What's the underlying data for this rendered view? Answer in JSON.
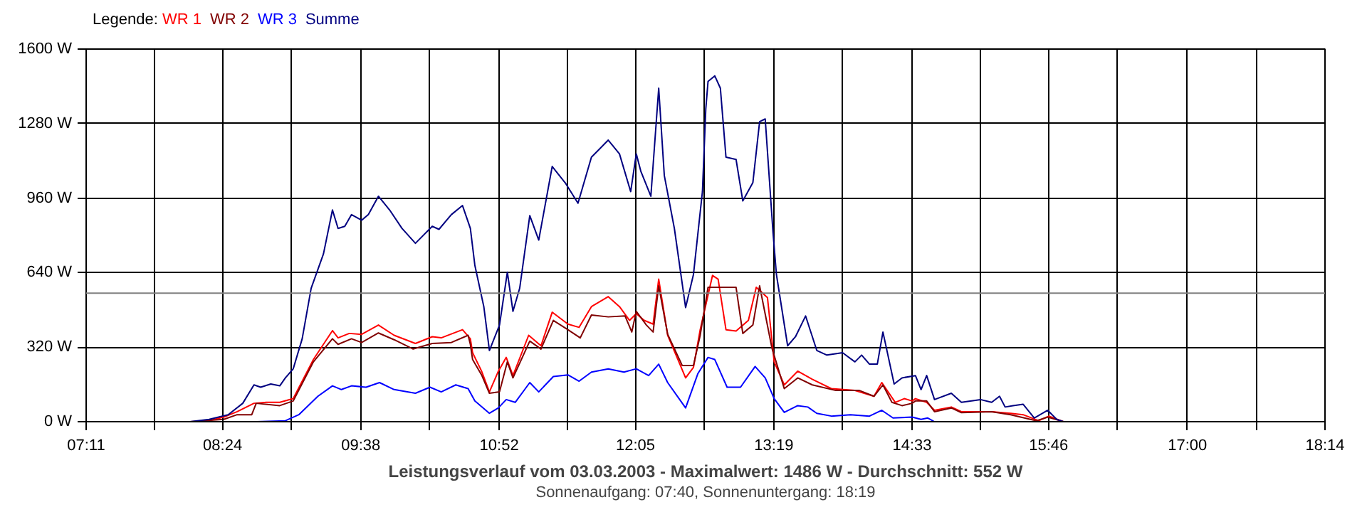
{
  "chart_data": {
    "type": "line",
    "title": "Leistungsverlauf vom 03.03.2003 - Maximalwert: 1486 W - Durchschnitt: 552 W",
    "subtitle": "Sonnenaufgang: 07:40, Sonnenuntergang: 18:19",
    "legend_title": "Legende:",
    "legend": "top left",
    "grid": true,
    "marker": "none",
    "line_style": "solid",
    "xlim": [
      7.183,
      18.233
    ],
    "ylim": [
      0,
      1600
    ],
    "xticks": [
      {
        "value": 7.183,
        "label": "07:11"
      },
      {
        "value": 7.797,
        "label": null
      },
      {
        "value": 8.4,
        "label": "08:24"
      },
      {
        "value": 9.017,
        "label": null
      },
      {
        "value": 9.633,
        "label": "09:38"
      },
      {
        "value": 10.25,
        "label": null
      },
      {
        "value": 10.867,
        "label": "10:52"
      },
      {
        "value": 11.475,
        "label": null
      },
      {
        "value": 12.083,
        "label": "12:05"
      },
      {
        "value": 12.7,
        "label": null
      },
      {
        "value": 13.317,
        "label": "13:19"
      },
      {
        "value": 13.933,
        "label": null
      },
      {
        "value": 14.55,
        "label": "14:33"
      },
      {
        "value": 15.158,
        "label": null
      },
      {
        "value": 15.767,
        "label": "15:46"
      },
      {
        "value": 16.383,
        "label": null
      },
      {
        "value": 17.006,
        "label": "17:00"
      },
      {
        "value": 17.619,
        "label": null
      },
      {
        "value": 18.233,
        "label": "18:14"
      }
    ],
    "yticks": [
      {
        "value": 0,
        "label": "0 W"
      },
      {
        "value": 320,
        "label": "320 W"
      },
      {
        "value": 640,
        "label": "640 W"
      },
      {
        "value": 960,
        "label": "960 W"
      },
      {
        "value": 1280,
        "label": "1280 W"
      },
      {
        "value": 1600,
        "label": "1600 W"
      }
    ],
    "ref_lines": [
      {
        "axis": "y",
        "value": 552,
        "color": "#808080"
      }
    ],
    "series": [
      {
        "name": "WR 1",
        "color": "#ff0000",
        "x": [
          8.24,
          8.41,
          8.53,
          8.68,
          8.79,
          8.91,
          9.03,
          9.21,
          9.38,
          9.43,
          9.53,
          9.64,
          9.79,
          9.93,
          10.12,
          10.27,
          10.35,
          10.54,
          10.61,
          10.63,
          10.71,
          10.78,
          10.86,
          10.93,
          10.99,
          11.13,
          11.24,
          11.34,
          11.48,
          11.58,
          11.69,
          11.84,
          11.94,
          12.03,
          12.09,
          12.16,
          12.24,
          12.29,
          12.37,
          12.47,
          12.53,
          12.6,
          12.66,
          12.77,
          12.82,
          12.89,
          12.98,
          13.09,
          13.16,
          13.26,
          13.32,
          13.41,
          13.53,
          13.66,
          13.83,
          14.04,
          14.21,
          14.28,
          14.4,
          14.48,
          14.55,
          14.58,
          14.68,
          14.75,
          14.9,
          14.99,
          15.26,
          15.43,
          15.54,
          15.68,
          15.77,
          15.9
        ],
        "values": [
          0,
          20,
          43,
          79,
          83,
          83,
          99,
          267,
          391,
          360,
          379,
          375,
          415,
          371,
          336,
          365,
          360,
          395,
          356,
          296,
          217,
          128,
          217,
          276,
          198,
          371,
          326,
          470,
          419,
          405,
          494,
          537,
          494,
          435,
          464,
          435,
          419,
          612,
          371,
          257,
          188,
          233,
          395,
          628,
          612,
          395,
          389,
          435,
          577,
          533,
          257,
          158,
          217,
          182,
          142,
          134,
          109,
          168,
          83,
          99,
          89,
          99,
          83,
          49,
          63,
          43,
          43,
          36,
          30,
          4,
          24,
          0
        ]
      },
      {
        "name": "WR 2",
        "color": "#800000",
        "x": [
          8.11,
          8.41,
          8.53,
          8.66,
          8.7,
          8.91,
          9.03,
          9.21,
          9.38,
          9.43,
          9.55,
          9.64,
          9.79,
          9.93,
          10.1,
          10.27,
          10.44,
          10.59,
          10.61,
          10.63,
          10.71,
          10.78,
          10.87,
          10.94,
          10.99,
          11.14,
          11.24,
          11.35,
          11.48,
          11.59,
          11.69,
          11.84,
          11.99,
          12.05,
          12.09,
          12.18,
          12.24,
          12.29,
          12.37,
          12.5,
          12.6,
          12.66,
          12.73,
          12.98,
          13.04,
          13.13,
          13.19,
          13.3,
          13.41,
          13.53,
          13.66,
          13.87,
          14.08,
          14.21,
          14.29,
          14.37,
          14.46,
          14.55,
          14.58,
          14.68,
          14.75,
          14.9,
          14.99,
          15.26,
          15.43,
          15.66,
          15.76,
          15.9
        ],
        "values": [
          0,
          10,
          30,
          30,
          79,
          69,
          89,
          257,
          356,
          332,
          356,
          340,
          381,
          352,
          312,
          336,
          340,
          371,
          332,
          267,
          201,
          122,
          128,
          257,
          188,
          346,
          312,
          435,
          395,
          360,
          458,
          450,
          454,
          385,
          474,
          415,
          385,
          583,
          375,
          241,
          241,
          371,
          577,
          577,
          379,
          415,
          583,
          316,
          142,
          188,
          158,
          134,
          134,
          109,
          158,
          83,
          69,
          79,
          89,
          89,
          43,
          59,
          39,
          43,
          30,
          4,
          20,
          0
        ]
      },
      {
        "name": "WR 3",
        "color": "#0000ff",
        "x": [
          8.7,
          8.96,
          9.08,
          9.25,
          9.38,
          9.46,
          9.55,
          9.68,
          9.8,
          9.93,
          10.12,
          10.25,
          10.35,
          10.48,
          10.59,
          10.65,
          10.78,
          10.86,
          10.93,
          11.01,
          11.14,
          11.22,
          11.35,
          11.48,
          11.58,
          11.69,
          11.84,
          11.98,
          12.09,
          12.2,
          12.29,
          12.37,
          12.53,
          12.64,
          12.73,
          12.79,
          12.9,
          13.02,
          13.15,
          13.24,
          13.32,
          13.41,
          13.53,
          13.62,
          13.7,
          13.83,
          14.0,
          14.17,
          14.28,
          14.38,
          14.55,
          14.63,
          14.69,
          14.75
        ],
        "values": [
          0,
          4,
          30,
          109,
          154,
          138,
          154,
          148,
          168,
          138,
          122,
          148,
          128,
          158,
          142,
          89,
          36,
          59,
          95,
          83,
          168,
          128,
          194,
          201,
          174,
          213,
          227,
          213,
          227,
          198,
          247,
          168,
          59,
          207,
          276,
          267,
          148,
          148,
          237,
          188,
          99,
          40,
          69,
          63,
          36,
          24,
          30,
          24,
          49,
          16,
          20,
          10,
          16,
          0
        ]
      },
      {
        "name": "Summe",
        "color": "#000080",
        "x": [
          8.11,
          8.28,
          8.45,
          8.58,
          8.68,
          8.74,
          8.83,
          8.91,
          8.96,
          9.03,
          9.11,
          9.19,
          9.3,
          9.38,
          9.43,
          9.49,
          9.55,
          9.64,
          9.7,
          9.79,
          9.89,
          10.0,
          10.12,
          10.27,
          10.33,
          10.44,
          10.54,
          10.61,
          10.65,
          10.73,
          10.78,
          10.87,
          10.94,
          10.99,
          11.05,
          11.14,
          11.22,
          11.34,
          11.46,
          11.57,
          11.69,
          11.77,
          11.84,
          11.94,
          12.04,
          12.09,
          12.13,
          12.22,
          12.29,
          12.34,
          12.43,
          12.53,
          12.6,
          12.68,
          12.71,
          12.73,
          12.79,
          12.84,
          12.89,
          12.98,
          13.04,
          13.13,
          13.19,
          13.24,
          13.31,
          13.34,
          13.44,
          13.51,
          13.6,
          13.7,
          13.79,
          13.93,
          14.04,
          14.1,
          14.17,
          14.24,
          14.29,
          14.39,
          14.46,
          14.58,
          14.63,
          14.68,
          14.75,
          14.9,
          14.99,
          15.16,
          15.26,
          15.33,
          15.38,
          15.45,
          15.54,
          15.64,
          15.76,
          15.84,
          15.9
        ],
        "values": [
          0,
          10,
          30,
          79,
          158,
          148,
          162,
          154,
          188,
          227,
          356,
          573,
          721,
          909,
          830,
          839,
          889,
          865,
          889,
          968,
          909,
          830,
          766,
          839,
          826,
          889,
          928,
          830,
          672,
          494,
          306,
          415,
          642,
          474,
          573,
          885,
          780,
          1096,
          1023,
          938,
          1136,
          1175,
          1209,
          1150,
          988,
          1150,
          1076,
          968,
          1432,
          1057,
          829,
          490,
          632,
          988,
          1343,
          1461,
          1485,
          1432,
          1136,
          1126,
          948,
          1027,
          1288,
          1300,
          810,
          632,
          326,
          365,
          454,
          306,
          286,
          296,
          257,
          286,
          247,
          247,
          385,
          162,
          188,
          198,
          138,
          198,
          95,
          122,
          83,
          95,
          83,
          109,
          63,
          69,
          75,
          16,
          49,
          10,
          0
        ]
      }
    ]
  }
}
